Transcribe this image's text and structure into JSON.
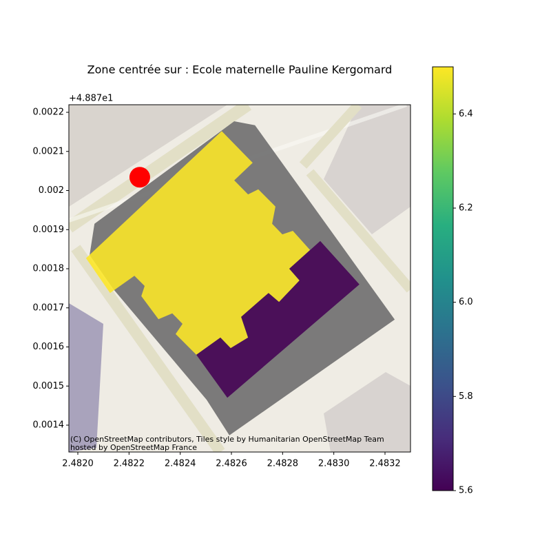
{
  "chart_data": {
    "type": "map",
    "title": "Zone centrée sur : Ecole maternelle Pauline Kergomard",
    "y_offset_label": "+4.887e1",
    "attribution": [
      "(C) OpenStreetMap contributors, Tiles style by Humanitarian OpenStreetMap Team",
      "hosted by OpenStreetMap France"
    ],
    "xlim": [
      2.481965,
      2.4832996
    ],
    "ylim": [
      0.0013313,
      0.0022194
    ],
    "xticks": [
      {
        "value": 2.482,
        "label": "2.4820"
      },
      {
        "value": 2.4822,
        "label": "2.4822"
      },
      {
        "value": 2.4824,
        "label": "2.4824"
      },
      {
        "value": 2.4826,
        "label": "2.4826"
      },
      {
        "value": 2.4828,
        "label": "2.4828"
      },
      {
        "value": 2.483,
        "label": "2.4830"
      },
      {
        "value": 2.4832,
        "label": "2.4832"
      }
    ],
    "yticks": [
      0.0014,
      0.0015,
      0.0016,
      0.0017,
      0.0018,
      0.0019,
      0.002,
      0.0021,
      0.0022
    ],
    "colormap": "viridis",
    "clim": [
      5.6,
      6.5
    ],
    "cticks": [
      5.6,
      5.8,
      {
        "value": 6,
        "label": "6.0"
      },
      6.2,
      6.4
    ],
    "zone": {
      "color": "#6e6e6e",
      "lon": [
        2.482065,
        2.482611,
        2.482692,
        2.483238,
        2.482592,
        2.482503,
        2.48214,
        2.482046
      ],
      "lat": [
        0.001915,
        0.002177,
        0.002167,
        0.00167,
        0.001374,
        0.001465,
        0.001747,
        0.001835
      ]
    },
    "buildings": [
      {
        "value": 6.5,
        "lon": [
          2.482032,
          2.482562,
          2.482683,
          2.482611,
          2.482665,
          2.482705,
          2.482772,
          2.482759,
          2.482799,
          2.48284,
          2.482907,
          2.482826,
          2.482866,
          2.482786,
          2.482745,
          2.482638,
          2.482665,
          2.482597,
          2.482557,
          2.482463,
          2.482382,
          2.482409,
          2.482369,
          2.482315,
          2.482248,
          2.482261,
          2.482221,
          2.482126
        ],
        "lat": [
          0.001827,
          0.002152,
          0.002071,
          0.002026,
          0.00199,
          0.002003,
          0.001959,
          0.001915,
          0.001888,
          0.001897,
          0.001848,
          0.0018,
          0.00177,
          0.001715,
          0.001738,
          0.001677,
          0.001624,
          0.001597,
          0.001624,
          0.00158,
          0.001633,
          0.001659,
          0.001686,
          0.001671,
          0.00173,
          0.001756,
          0.001782,
          0.001738
        ]
      },
      {
        "value": 5.6,
        "lon": [
          2.482463,
          2.482557,
          2.482597,
          2.482665,
          2.482638,
          2.482745,
          2.482786,
          2.482866,
          2.482826,
          2.482947,
          2.4831,
          2.482584
        ],
        "lat": [
          0.00158,
          0.001624,
          0.001597,
          0.001624,
          0.001677,
          0.001738,
          0.001715,
          0.00177,
          0.0018,
          0.001871,
          0.00176,
          0.00147
        ]
      }
    ],
    "point": {
      "lon": 2.482242,
      "lat": 0.002034,
      "color": "#ff0000"
    }
  }
}
